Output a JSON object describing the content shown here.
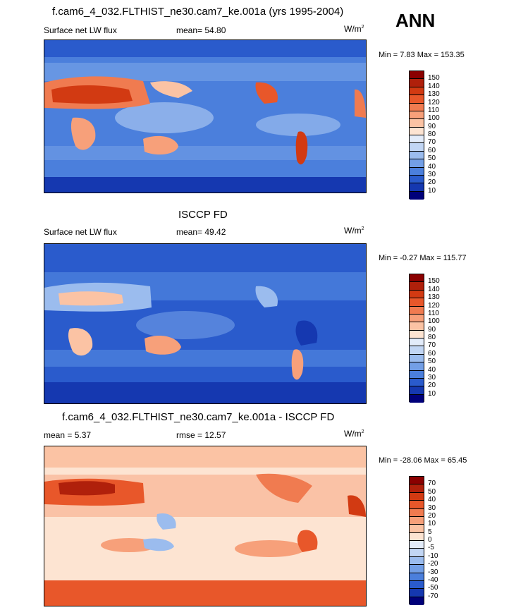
{
  "season": "ANN",
  "panels": [
    {
      "title": "f.cam6_4_032.FLTHIST_ne30.cam7_ke.001a (yrs 1995-2004)",
      "left_label": "Surface net LW flux",
      "center_label": "mean=  54.80",
      "units": "W/m",
      "units_sup": "2",
      "minmax": "Min =   7.83 Max = 153.35",
      "colorbar": {
        "labels": [
          "150",
          "140",
          "130",
          "120",
          "110",
          "100",
          "90",
          "80",
          "70",
          "60",
          "50",
          "40",
          "30",
          "20",
          "10"
        ],
        "colors": [
          "#8b0000",
          "#b0200b",
          "#d23a12",
          "#e8572a",
          "#f07b50",
          "#f7a07a",
          "#fbc3a4",
          "#fde4d2",
          "#e3ecfa",
          "#c2d6f4",
          "#9bbcee",
          "#739fe6",
          "#4b7fdc",
          "#2a5bcc",
          "#1538b0",
          "#00007a"
        ]
      }
    },
    {
      "title": "ISCCP FD",
      "left_label": "Surface net LW flux",
      "center_label": "mean=  49.42",
      "units": "W/m",
      "units_sup": "2",
      "minmax": "Min =  -0.27 Max = 115.77",
      "colorbar": {
        "labels": [
          "150",
          "140",
          "130",
          "120",
          "110",
          "100",
          "90",
          "80",
          "70",
          "60",
          "50",
          "40",
          "30",
          "20",
          "10"
        ],
        "colors": [
          "#8b0000",
          "#b0200b",
          "#d23a12",
          "#e8572a",
          "#f07b50",
          "#f7a07a",
          "#fbc3a4",
          "#fde4d2",
          "#e3ecfa",
          "#c2d6f4",
          "#9bbcee",
          "#739fe6",
          "#4b7fdc",
          "#2a5bcc",
          "#1538b0",
          "#00007a"
        ]
      }
    },
    {
      "title": "f.cam6_4_032.FLTHIST_ne30.cam7_ke.001a - ISCCP FD",
      "left_label": "mean =   5.37",
      "center_label": "rmse =  12.57",
      "units": "W/m",
      "units_sup": "2",
      "minmax": "Min = -28.06 Max =  65.45",
      "colorbar": {
        "labels": [
          "70",
          "50",
          "40",
          "30",
          "20",
          "10",
          "5",
          "0",
          "-5",
          "-10",
          "-20",
          "-30",
          "-40",
          "-50",
          "-70"
        ],
        "colors": [
          "#8b0000",
          "#b0200b",
          "#d23a12",
          "#e8572a",
          "#f07b50",
          "#f7a07a",
          "#fbc3a4",
          "#fde4d2",
          "#e3ecfa",
          "#c2d6f4",
          "#9bbcee",
          "#739fe6",
          "#4b7fdc",
          "#2a5bcc",
          "#1538b0",
          "#00007a"
        ]
      }
    }
  ]
}
